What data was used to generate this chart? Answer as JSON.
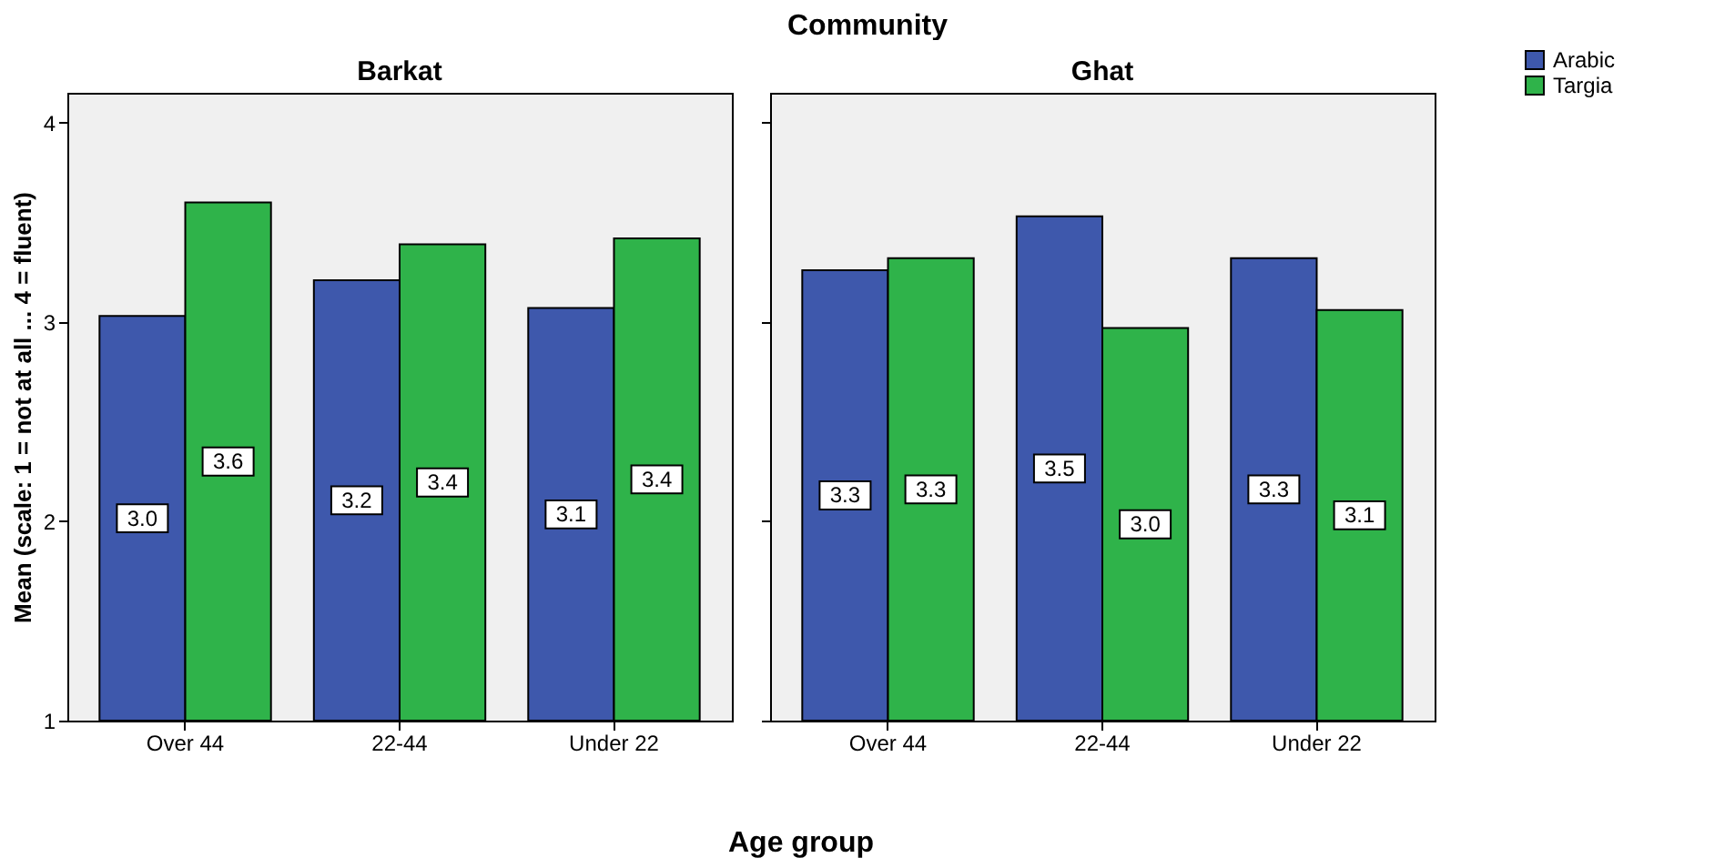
{
  "chart_data": [
    {
      "type": "bar",
      "title": "Barkat",
      "ylabel": "Mean (scale: 1 = not at all ... 4 = fluent)",
      "xlabel": "Age group",
      "annotations": [
        "Community"
      ],
      "categories": [
        "Over 44",
        "22-44",
        "Under 22"
      ],
      "series": [
        {
          "name": "Arabic",
          "color": "#3e58ac",
          "values": [
            3.03,
            3.21,
            3.07
          ],
          "value_labels": [
            "3.0",
            "3.2",
            "3.1"
          ]
        },
        {
          "name": "Targia",
          "color": "#2fb34a",
          "values": [
            3.6,
            3.39,
            3.42
          ],
          "value_labels": [
            "3.6",
            "3.4",
            "3.4"
          ]
        }
      ],
      "ylim": [
        1,
        4.15
      ],
      "yticks": [
        1,
        2,
        3,
        4
      ],
      "grid": false,
      "legend": "top right"
    },
    {
      "type": "bar",
      "title": "Ghat",
      "categories": [
        "Over 44",
        "22-44",
        "Under 22"
      ],
      "series": [
        {
          "name": "Arabic",
          "color": "#3e58ac",
          "values": [
            3.26,
            3.53,
            3.32
          ],
          "value_labels": [
            "3.3",
            "3.5",
            "3.3"
          ]
        },
        {
          "name": "Targia",
          "color": "#2fb34a",
          "values": [
            3.32,
            2.97,
            3.06
          ],
          "value_labels": [
            "3.3",
            "3.0",
            "3.1"
          ]
        }
      ],
      "ylim": [
        1,
        4.15
      ],
      "yticks": [
        1,
        2,
        3,
        4
      ],
      "grid": false,
      "tick_labels": "x",
      "legend": "top right"
    }
  ]
}
